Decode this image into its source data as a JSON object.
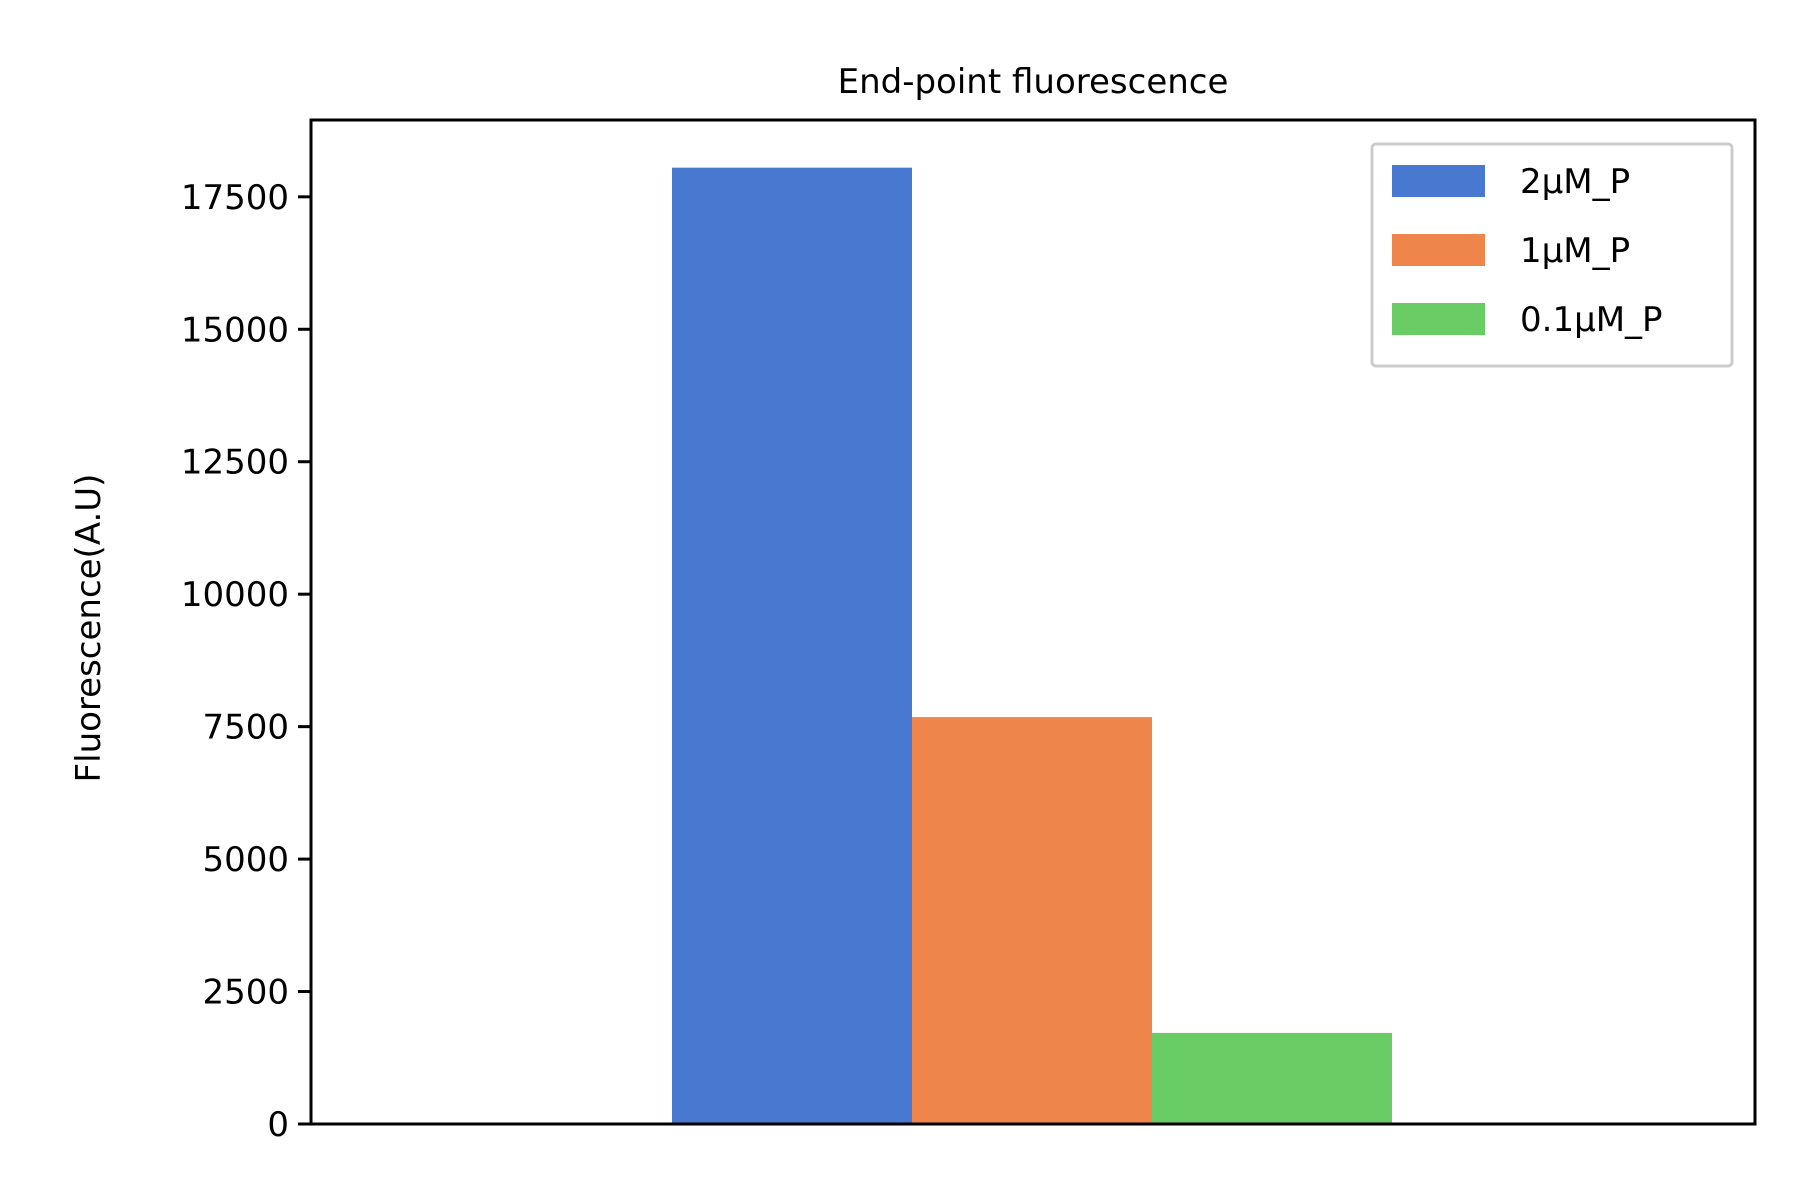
{
  "chart_data": {
    "type": "bar",
    "title": "End-point fluorescence",
    "xlabel": "",
    "ylabel": "Fluorescence(A.U)",
    "ylim": [
      0,
      18950
    ],
    "yticks": [
      0,
      2500,
      5000,
      7500,
      10000,
      12500,
      15000,
      17500
    ],
    "ytick_labels": [
      "0",
      "2500",
      "5000",
      "7500",
      "10000",
      "12500",
      "15000",
      "17500"
    ],
    "grid": false,
    "legend_position": "top-right",
    "series": [
      {
        "name": "2μM_P",
        "value": 18050,
        "color": "#4878cf"
      },
      {
        "name": "1μM_P",
        "value": 7680,
        "color": "#ee854a"
      },
      {
        "name": "0.1μM_P",
        "value": 1720,
        "color": "#6acc64"
      }
    ]
  }
}
